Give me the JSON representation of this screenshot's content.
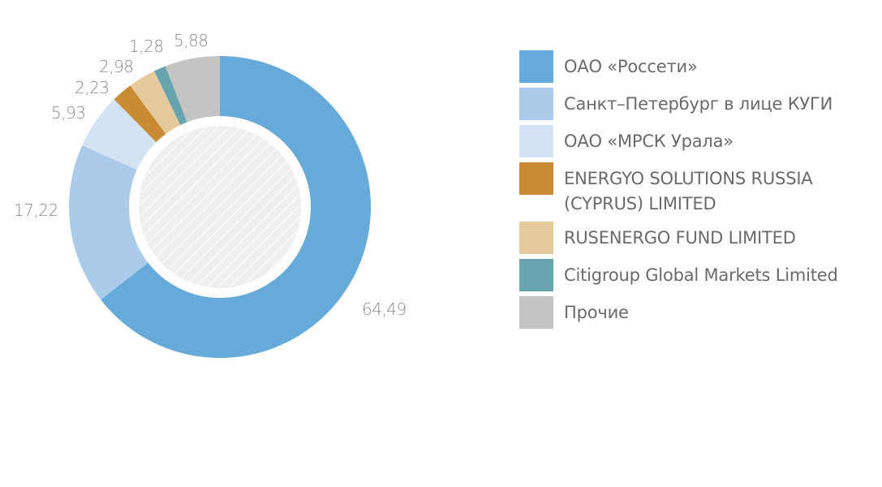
{
  "chart_data": {
    "type": "pie",
    "donut": true,
    "categories": [
      "ОАО «Россети»",
      "Санкт–Петербург в лице КУГИ",
      "ОАО «МРСК Урала»",
      "ENERGYO SOLUTIONS RUSSIA (CYPRUS) LIMITED",
      "RUSENERGO FUND LIMITED",
      "Citigroup Global Markets Limited",
      "Прочие"
    ],
    "values": [
      64.49,
      17.22,
      5.93,
      2.23,
      2.98,
      1.28,
      5.88
    ],
    "value_labels": [
      "64,49",
      "17,22",
      "5,93",
      "2,23",
      "2,98",
      "1,28",
      "5,88"
    ],
    "colors": [
      "#65aad9",
      "#abcbea",
      "#d3e3f4",
      "#c98b34",
      "#e6ca9c",
      "#67a4ae",
      "#c4c4c4"
    ],
    "legend_position": "right",
    "start_angle": "top, clockwise"
  }
}
